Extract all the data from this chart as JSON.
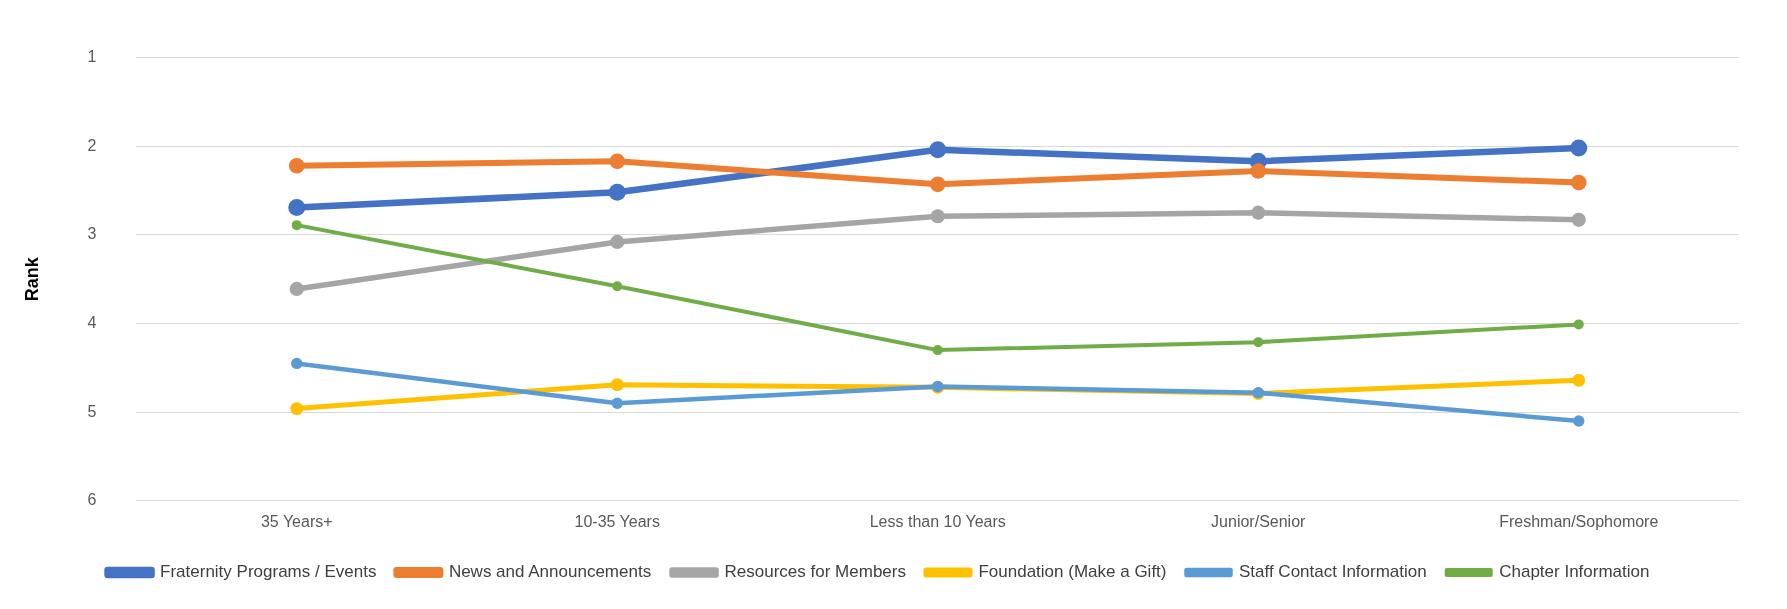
{
  "chart_data": {
    "type": "line",
    "ylabel": "Rank",
    "categories": [
      "35 Years+",
      "10-35 Years",
      "Less than 10 Years",
      "Junior/Senior",
      "Freshman/Sophomore"
    ],
    "ylim": [
      6,
      1
    ],
    "yticks": [
      1,
      2,
      3,
      4,
      5,
      6
    ],
    "grid": "y",
    "legend": "bottom",
    "marker": "circle",
    "line_style": "solid",
    "series": [
      {
        "name": "Fraternity Programs / Events",
        "color": "#4472c4",
        "values": [
          2.69,
          2.52,
          2.04,
          2.17,
          2.02
        ]
      },
      {
        "name": "News and Announcements",
        "color": "#ed7d31",
        "values": [
          2.22,
          2.17,
          2.43,
          2.28,
          2.41
        ]
      },
      {
        "name": "Resources for Members",
        "color": "#a5a5a5",
        "values": [
          3.61,
          3.08,
          2.79,
          2.75,
          2.83
        ]
      },
      {
        "name": "Foundation (Make a Gift)",
        "color": "#ffc000",
        "values": [
          4.96,
          4.69,
          4.72,
          4.79,
          4.64
        ]
      },
      {
        "name": "Staff Contact Information",
        "color": "#5b9bd5",
        "values": [
          4.45,
          4.9,
          4.71,
          4.78,
          5.1
        ]
      },
      {
        "name": "Chapter Information",
        "color": "#70ad47",
        "values": [
          2.89,
          3.58,
          4.3,
          4.21,
          4.01
        ]
      }
    ]
  }
}
